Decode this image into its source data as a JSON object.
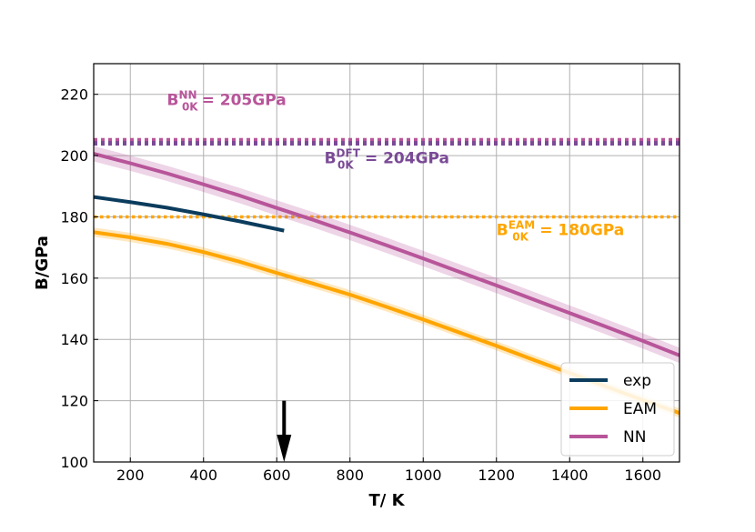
{
  "chart_data": {
    "type": "line",
    "title": "",
    "xlabel": "T/ K",
    "ylabel": "B/GPa",
    "xlim": [
      100,
      1700
    ],
    "ylim": [
      100,
      230
    ],
    "xticks": [
      200,
      400,
      600,
      800,
      1000,
      1200,
      1400,
      1600
    ],
    "yticks": [
      100,
      120,
      140,
      160,
      180,
      200,
      220
    ],
    "grid": true,
    "legend_position": "bottom-right",
    "series": [
      {
        "name": "exp",
        "color": "#0b3c5d",
        "x": [
          100,
          200,
          300,
          400,
          500,
          620
        ],
        "y": [
          186.5,
          184.8,
          183.0,
          180.8,
          178.5,
          175.5
        ]
      },
      {
        "name": "EAM",
        "color": "#ffa500",
        "band": 1.5,
        "x": [
          100,
          200,
          300,
          400,
          500,
          600,
          700,
          800,
          900,
          1000,
          1100,
          1200,
          1300,
          1400,
          1500,
          1600,
          1700
        ],
        "y": [
          175.0,
          173.3,
          171.2,
          168.5,
          165.3,
          161.7,
          158.2,
          154.6,
          150.6,
          146.5,
          142.2,
          137.9,
          133.4,
          129.0,
          124.6,
          120.2,
          116.0
        ]
      },
      {
        "name": "NN",
        "color": "#b8559a",
        "band": 2.5,
        "x": [
          100,
          200,
          300,
          400,
          500,
          600,
          700,
          800,
          900,
          1000,
          1100,
          1200,
          1300,
          1400,
          1500,
          1600,
          1700
        ],
        "y": [
          200.6,
          197.5,
          194.2,
          190.6,
          186.9,
          182.9,
          179.0,
          174.9,
          170.7,
          166.4,
          162.0,
          157.6,
          153.1,
          148.6,
          144.1,
          139.5,
          134.8
        ]
      }
    ],
    "reference_lines": [
      {
        "name": "NN 0K",
        "y": 205,
        "color": "#b8559a",
        "style": "dotted"
      },
      {
        "name": "DFT 0K",
        "y": 204,
        "color": "#7a4a96",
        "style": "dotted"
      },
      {
        "name": "EAM 0K",
        "y": 180,
        "color": "#ffa500",
        "style": "dotted"
      }
    ],
    "annotations": [
      {
        "base": "B",
        "sub": "0K",
        "sup": "NN",
        "text": "= 205GPa",
        "color": "#b8559a",
        "x": 300,
        "y": 216.5
      },
      {
        "base": "B",
        "sub": "0K",
        "sup": "DFT",
        "text": "= 204GPa",
        "color": "#7a4a96",
        "x": 730,
        "y": 197.5
      },
      {
        "base": "B",
        "sub": "0K",
        "sup": "EAM",
        "text": "= 180GPa",
        "color": "#ffa500",
        "x": 1200,
        "y": 174
      }
    ],
    "arrow": {
      "x": 620,
      "y_start": 120,
      "y_end": 100,
      "color": "#000000"
    }
  }
}
